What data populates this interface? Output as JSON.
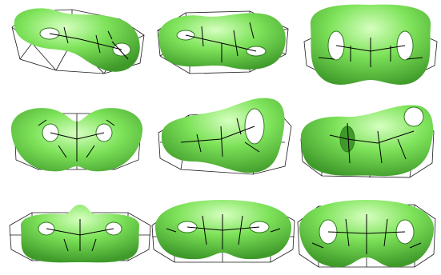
{
  "figure": {
    "rows": 3,
    "cols": 3,
    "colors": {
      "surface": "#7ee35a",
      "surface_light": "#c8f7a8",
      "surface_dark": "#3f9a2a",
      "wireframe": "#1a1a1a",
      "background": "#ffffff"
    },
    "panels": [
      {
        "name": "panel-r1c1",
        "view": "oblique-left",
        "holes": 2
      },
      {
        "name": "panel-r1c2",
        "view": "oblique-low",
        "holes": 2
      },
      {
        "name": "panel-r1c3",
        "view": "front",
        "holes": 2
      },
      {
        "name": "panel-r2c1",
        "view": "top-down",
        "holes": 2
      },
      {
        "name": "panel-r2c2",
        "view": "oblique-right",
        "holes": 2
      },
      {
        "name": "panel-r2c3",
        "view": "end-on",
        "holes": 2
      },
      {
        "name": "panel-r3c1",
        "view": "low-front",
        "holes": 2
      },
      {
        "name": "panel-r3c2",
        "view": "side",
        "holes": 2
      },
      {
        "name": "panel-r3c3",
        "view": "front-tilted",
        "holes": 2
      }
    ]
  }
}
